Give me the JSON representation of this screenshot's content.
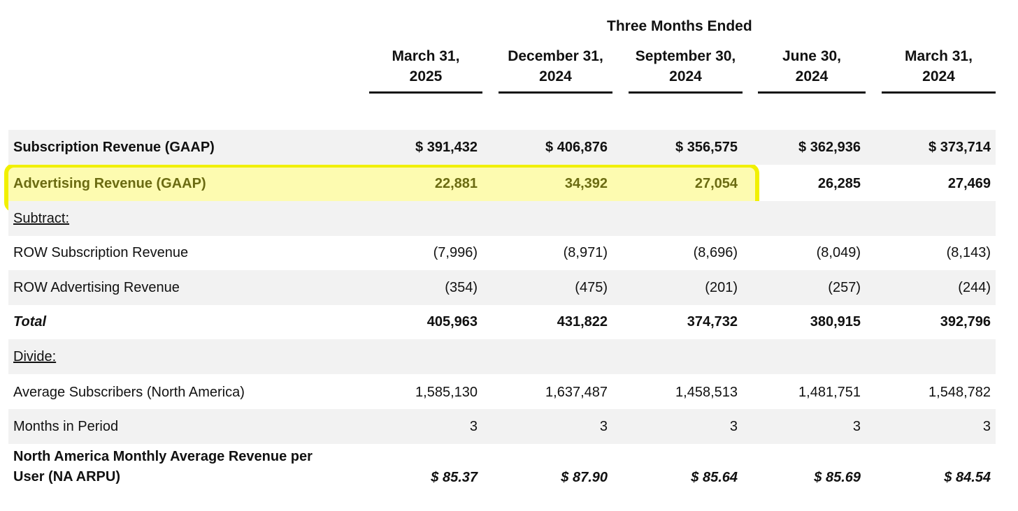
{
  "header": {
    "group_title": "Three Months Ended",
    "columns": [
      {
        "line1": "March 31,",
        "line2": "2025"
      },
      {
        "line1": "December 31,",
        "line2": "2024"
      },
      {
        "line1": "September 30,",
        "line2": "2024"
      },
      {
        "line1": "June 30,",
        "line2": "2024"
      },
      {
        "line1": "March 31,",
        "line2": "2024"
      }
    ]
  },
  "highlight_color": "#f1f000",
  "rows": [
    {
      "label": "Subscription Revenue (GAAP)",
      "values": [
        "$ 391,432",
        "$ 406,876",
        "$ 356,575",
        "$ 362,936",
        "$ 373,714"
      ]
    },
    {
      "label": "Advertising Revenue (GAAP)",
      "values": [
        "22,881",
        "34,392",
        "27,054",
        "26,285",
        "27,469"
      ]
    },
    {
      "label": "Subtract:",
      "values": [
        "",
        "",
        "",
        "",
        ""
      ]
    },
    {
      "label": "ROW Subscription Revenue",
      "values": [
        "(7,996)",
        "(8,971)",
        "(8,696)",
        "(8,049)",
        "(8,143)"
      ]
    },
    {
      "label": "ROW Advertising Revenue",
      "values": [
        "(354)",
        "(475)",
        "(201)",
        "(257)",
        "(244)"
      ]
    },
    {
      "label": "Total",
      "values": [
        "405,963",
        "431,822",
        "374,732",
        "380,915",
        "392,796"
      ]
    },
    {
      "label": "Divide:",
      "values": [
        "",
        "",
        "",
        "",
        ""
      ]
    },
    {
      "label": "Average Subscribers (North America)",
      "values": [
        "1,585,130",
        "1,637,487",
        "1,458,513",
        "1,481,751",
        "1,548,782"
      ]
    },
    {
      "label": "Months in Period",
      "values": [
        "3",
        "3",
        "3",
        "3",
        "3"
      ]
    },
    {
      "label_line1": "North America Monthly Average Revenue per",
      "label_line2": "User (NA ARPU)",
      "values": [
        "$ 85.37",
        "$ 87.90",
        "$ 85.64",
        "$ 85.69",
        "$ 84.54"
      ]
    }
  ]
}
